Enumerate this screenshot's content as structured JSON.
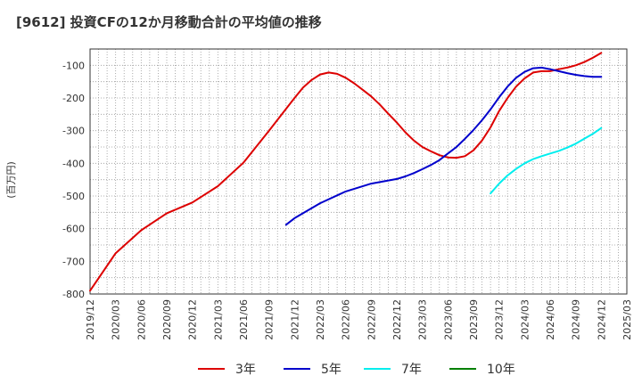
{
  "chart_data": {
    "type": "line",
    "title": "[9612]  投資CFの12か月移動合計の平均値の推移",
    "ylabel": "(百万円)",
    "xlabel": "",
    "ylim": [
      -800,
      -50
    ],
    "yticks": [
      -100,
      -200,
      -300,
      -400,
      -500,
      -600,
      -700,
      -800
    ],
    "xticks": [
      "2019/12",
      "2020/03",
      "2020/06",
      "2020/09",
      "2020/12",
      "2021/03",
      "2021/06",
      "2021/09",
      "2021/12",
      "2022/03",
      "2022/06",
      "2022/09",
      "2022/12",
      "2023/03",
      "2023/06",
      "2023/09",
      "2023/12",
      "2024/03",
      "2024/06",
      "2024/09",
      "2024/12",
      "2025/03"
    ],
    "grid": true,
    "legend_position": "bottom",
    "series": [
      {
        "name": "3年",
        "color": "#dd0000",
        "x": [
          "2019/12",
          "2020/03",
          "2020/06",
          "2020/09",
          "2020/12",
          "2021/03",
          "2021/06",
          "2021/09",
          "2021/12",
          "2022/01",
          "2022/02",
          "2022/03",
          "2022/04",
          "2022/05",
          "2022/06",
          "2022/07",
          "2022/08",
          "2022/09",
          "2022/10",
          "2022/11",
          "2022/12",
          "2023/01",
          "2023/02",
          "2023/03",
          "2023/04",
          "2023/05",
          "2023/06",
          "2023/07",
          "2023/08",
          "2023/09",
          "2023/10",
          "2023/11",
          "2023/12",
          "2024/01",
          "2024/02",
          "2024/03",
          "2024/04",
          "2024/05",
          "2024/06",
          "2024/07",
          "2024/08",
          "2024/09",
          "2024/10",
          "2024/11",
          "2024/12"
        ],
        "values": [
          -790,
          -675,
          -605,
          -553,
          -520,
          -470,
          -398,
          -300,
          -200,
          -168,
          -145,
          -128,
          -122,
          -126,
          -138,
          -155,
          -175,
          -195,
          -220,
          -248,
          -275,
          -305,
          -330,
          -350,
          -363,
          -375,
          -382,
          -383,
          -378,
          -360,
          -330,
          -290,
          -240,
          -200,
          -165,
          -140,
          -122,
          -118,
          -118,
          -112,
          -107,
          -100,
          -90,
          -77,
          -62
        ]
      },
      {
        "name": "5年",
        "color": "#0000cc",
        "x": [
          "2021/11",
          "2021/12",
          "2022/03",
          "2022/06",
          "2022/09",
          "2022/12",
          "2023/01",
          "2023/02",
          "2023/03",
          "2023/04",
          "2023/05",
          "2023/06",
          "2023/07",
          "2023/08",
          "2023/09",
          "2023/10",
          "2023/11",
          "2023/12",
          "2024/01",
          "2024/02",
          "2024/03",
          "2024/04",
          "2024/05",
          "2024/06",
          "2024/07",
          "2024/08",
          "2024/09",
          "2024/10",
          "2024/11",
          "2024/12"
        ],
        "values": [
          -588,
          -568,
          -522,
          -486,
          -462,
          -448,
          -440,
          -430,
          -418,
          -405,
          -390,
          -370,
          -350,
          -325,
          -298,
          -268,
          -235,
          -198,
          -165,
          -138,
          -120,
          -109,
          -107,
          -112,
          -118,
          -124,
          -129,
          -133,
          -135,
          -135
        ]
      },
      {
        "name": "7年",
        "color": "#00eeee",
        "x": [
          "2023/11",
          "2023/12",
          "2024/01",
          "2024/02",
          "2024/03",
          "2024/04",
          "2024/05",
          "2024/06",
          "2024/07",
          "2024/08",
          "2024/09",
          "2024/10",
          "2024/11",
          "2024/12"
        ],
        "values": [
          -492,
          -462,
          -437,
          -417,
          -400,
          -387,
          -378,
          -370,
          -362,
          -352,
          -340,
          -325,
          -310,
          -292
        ]
      },
      {
        "name": "10年",
        "color": "#008000",
        "x": [],
        "values": []
      }
    ]
  }
}
